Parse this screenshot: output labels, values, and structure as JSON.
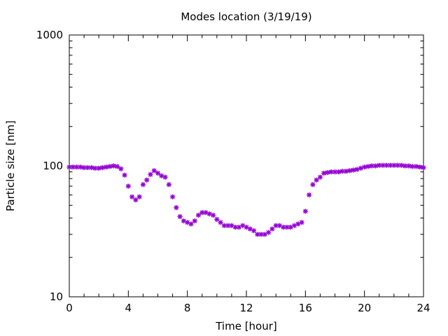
{
  "chart_data": {
    "type": "scatter",
    "title": "Modes location (3/19/19)",
    "xlabel": "Time [hour]",
    "ylabel": "Particle size [nm]",
    "xlim": [
      0,
      24
    ],
    "ylim": [
      10,
      1000
    ],
    "yscale": "log",
    "xticks": [
      0,
      4,
      8,
      12,
      16,
      20,
      24
    ],
    "xtick_labels": [
      "0",
      "4",
      "8",
      "12",
      "16",
      "20",
      "24"
    ],
    "yticks": [
      10,
      100,
      1000
    ],
    "ytick_labels": [
      "10",
      "100",
      "1000"
    ],
    "grid": false,
    "marker": "asterisk",
    "color": "#9400d3",
    "series": [
      {
        "x": [
          0.0,
          0.25,
          0.5,
          0.75,
          1.0,
          1.25,
          1.5,
          1.75,
          2.0,
          2.25,
          2.5,
          2.75,
          3.0,
          3.25,
          3.5,
          3.75,
          4.0,
          4.25,
          4.5,
          4.75,
          5.0,
          5.25,
          5.5,
          5.75,
          6.0,
          6.25,
          6.5,
          6.75,
          7.0,
          7.25,
          7.5,
          7.75,
          8.0,
          8.25,
          8.5,
          8.75,
          9.0,
          9.25,
          9.5,
          9.75,
          10.0,
          10.25,
          10.5,
          10.75,
          11.0,
          11.25,
          11.5,
          11.75,
          12.0,
          12.25,
          12.5,
          12.75,
          13.0,
          13.25,
          13.5,
          13.75,
          14.0,
          14.25,
          14.5,
          14.75,
          15.0,
          15.25,
          15.5,
          15.75,
          16.0,
          16.25,
          16.5,
          16.75,
          17.0,
          17.25,
          17.5,
          17.75,
          18.0,
          18.25,
          18.5,
          18.75,
          19.0,
          19.25,
          19.5,
          19.75,
          20.0,
          20.25,
          20.5,
          20.75,
          21.0,
          21.25,
          21.5,
          21.75,
          22.0,
          22.25,
          22.5,
          22.75,
          23.0,
          23.25,
          23.5,
          23.75,
          24.0
        ],
        "y": [
          98,
          98,
          98,
          98,
          97,
          97,
          97,
          96,
          96,
          97,
          98,
          99,
          100,
          99,
          95,
          85,
          70,
          58,
          55,
          58,
          72,
          78,
          86,
          92,
          88,
          84,
          82,
          72,
          58,
          48,
          41,
          38,
          37,
          36,
          38,
          42,
          44,
          44,
          43,
          42,
          39,
          37,
          35,
          35,
          35,
          34,
          34,
          35,
          34,
          33,
          32,
          30,
          30,
          30,
          31,
          33,
          35,
          35,
          34,
          34,
          34,
          35,
          36,
          37,
          45,
          60,
          72,
          78,
          82,
          88,
          89,
          90,
          90,
          90,
          91,
          91,
          92,
          93,
          94,
          96,
          98,
          99,
          100,
          100,
          101,
          101,
          101,
          101,
          101,
          101,
          101,
          100,
          100,
          99,
          99,
          98,
          97
        ]
      }
    ]
  }
}
